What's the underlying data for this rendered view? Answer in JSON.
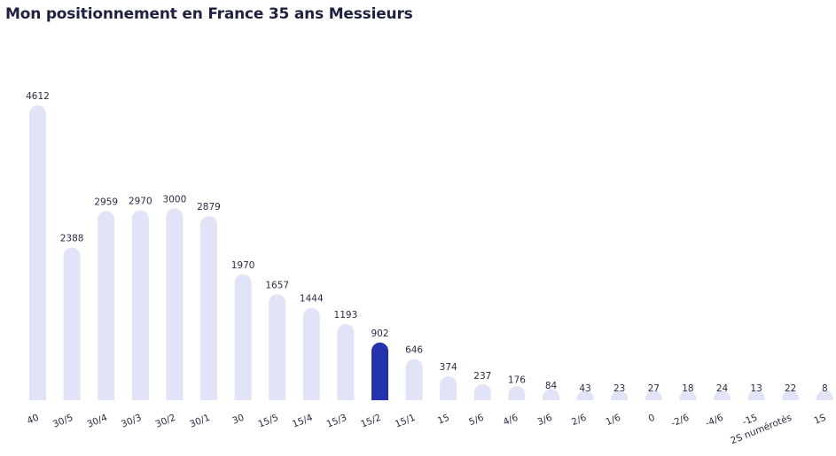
{
  "title": "Mon positionnement en France 35 ans Messieurs",
  "colors": {
    "bar": "#e1e3f6",
    "highlight": "#2433ad",
    "text": "#1f2140"
  },
  "chart_data": {
    "type": "bar",
    "title": "Mon positionnement en France 35 ans Messieurs",
    "xlabel": "",
    "ylabel": "",
    "grid": false,
    "ylim": [
      0,
      4612
    ],
    "highlight_category": "15/2",
    "categories": [
      "40",
      "30/5",
      "30/4",
      "30/3",
      "30/2",
      "30/1",
      "30",
      "15/5",
      "15/4",
      "15/3",
      "15/2",
      "15/1",
      "15",
      "5/6",
      "4/6",
      "3/6",
      "2/6",
      "1/6",
      "0",
      "-2/6",
      "-4/6",
      "-15",
      "2S numérotés",
      "1S"
    ],
    "values": [
      4612,
      2388,
      2959,
      2970,
      3000,
      2879,
      1970,
      1657,
      1444,
      1193,
      902,
      646,
      374,
      237,
      176,
      84,
      43,
      23,
      27,
      18,
      24,
      13,
      22,
      8
    ]
  }
}
